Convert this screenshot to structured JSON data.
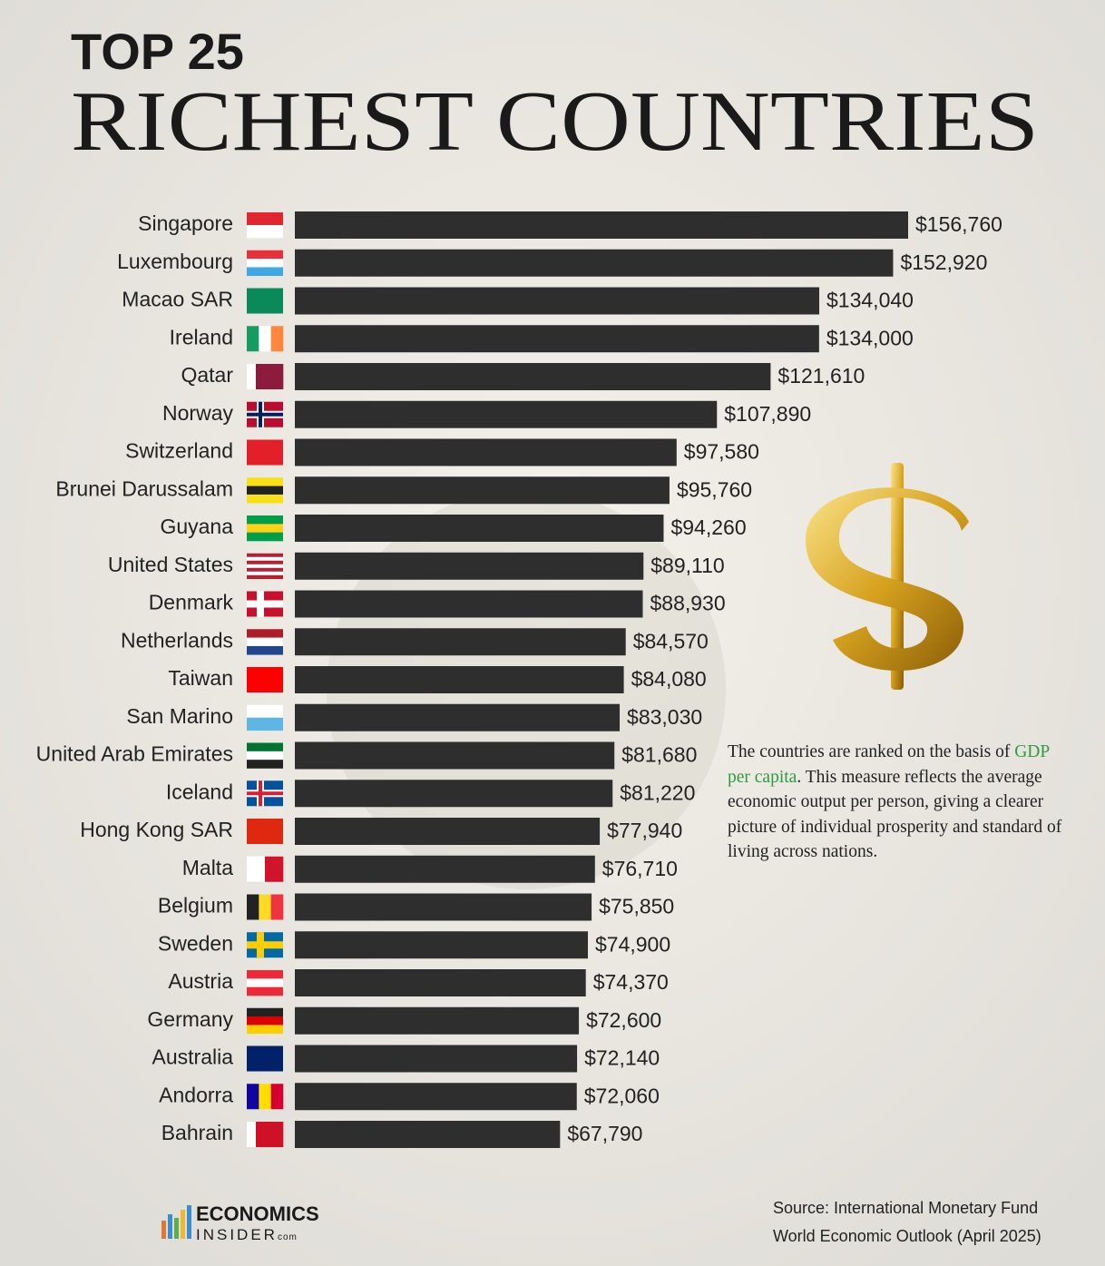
{
  "chart_data": {
    "type": "bar",
    "orientation": "horizontal",
    "title": "TOP 25",
    "subtitle": "RICHEST COUNTRIES",
    "categories": [
      "Singapore",
      "Luxembourg",
      "Macao SAR",
      "Ireland",
      "Qatar",
      "Norway",
      "Switzerland",
      "Brunei Darussalam",
      "Guyana",
      "United States",
      "Denmark",
      "Netherlands",
      "Taiwan",
      "San Marino",
      "United Arab Emirates",
      "Iceland",
      "Hong Kong SAR",
      "Malta",
      "Belgium",
      "Sweden",
      "Austria",
      "Germany",
      "Australia",
      "Andorra",
      "Bahrain"
    ],
    "values": [
      156760,
      152920,
      134040,
      134000,
      121610,
      107890,
      97580,
      95760,
      94260,
      89110,
      88930,
      84570,
      84080,
      83030,
      81680,
      81220,
      77940,
      76710,
      75850,
      74900,
      74370,
      72600,
      72140,
      72060,
      67790
    ],
    "value_labels": [
      "$156,760",
      "$152,920",
      "$134,040",
      "$134,000",
      "$121,610",
      "$107,890",
      "$97,580",
      "$95,760",
      "$94,260",
      "$89,110",
      "$88,930",
      "$84,570",
      "$84,080",
      "$83,030",
      "$81,680",
      "$81,220",
      "$77,940",
      "$76,710",
      "$75,850",
      "$74,900",
      "$74,370",
      "$72,600",
      "$72,140",
      "$72,060",
      "$67,790"
    ],
    "color": "#2e2e2e",
    "note": {
      "before": "The countries are ranked on the basis of ",
      "highlight": "GDP per capita",
      "after": ". This measure reflects the average economic output per person, giving a clearer picture of individual prosperity and standard of living across nations."
    },
    "source": [
      "Source: International Monetary Fund",
      "World Economic Outlook (April 2025)"
    ],
    "logo": {
      "line1": "ECONOMICS",
      "line2": "INSIDER",
      "suffix": "com"
    }
  }
}
